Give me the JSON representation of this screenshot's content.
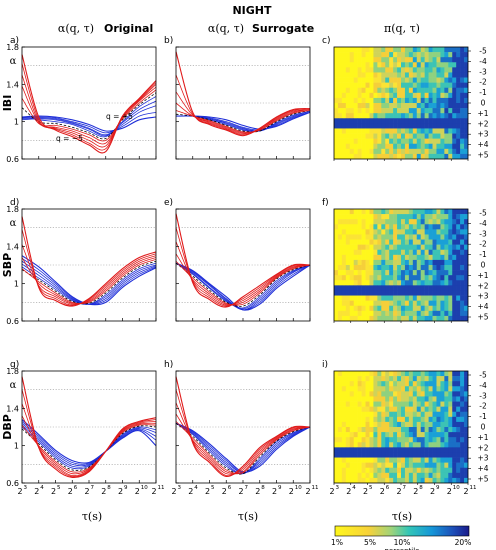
{
  "figure_title": "NIGHT",
  "column_titles": [
    {
      "sym": "α(q, τ)",
      "word": "Original"
    },
    {
      "sym": "α(q, τ)",
      "word": "Surrogate"
    },
    {
      "sym": "π(q, τ)",
      "word": ""
    }
  ],
  "row_labels": [
    "IBI",
    "SBP",
    "DBP"
  ],
  "panel_letters": [
    "a)",
    "b)",
    "c)",
    "d)",
    "e)",
    "f)",
    "g)",
    "h)",
    "i)"
  ],
  "alpha_label": "α",
  "q_axis_label": "q",
  "x_axis_label": "τ(s)",
  "x_tick_exponents": [
    "3",
    "4",
    "5",
    "6",
    "7",
    "8",
    "9",
    "10",
    "11"
  ],
  "y_ticks": [
    "1.8",
    "1.4",
    "1",
    "0.6"
  ],
  "q_ticks": [
    "-5",
    "-4",
    "-3",
    "-2",
    "-1",
    "0",
    "+1",
    "+2",
    "+3",
    "+4",
    "+5"
  ],
  "annotations": {
    "q_plus": "q = +5",
    "q_minus": "q = −5"
  },
  "colorbar": {
    "ticks": [
      "1%",
      "5%",
      "10%",
      "20%"
    ],
    "label": "percentile"
  },
  "colors": {
    "positive_q": "#1f2fd8",
    "negative_q": "#e01b1b",
    "q_zero": "#000000"
  },
  "chart_data": [
    {
      "type": "line",
      "panel": "a",
      "row": "IBI",
      "kind": "Original",
      "x_log2": [
        3,
        4,
        5,
        6,
        7,
        8,
        9,
        10,
        11
      ],
      "ylim": [
        0.6,
        1.8
      ],
      "grid": "dotted horizontal",
      "legend": "inline labels",
      "series": [
        {
          "name": "q = +5",
          "values": [
            1.05,
            1.06,
            1.05,
            1.02,
            0.97,
            0.9,
            0.93,
            1.02,
            1.05
          ]
        },
        {
          "values": [
            1.04,
            1.05,
            1.04,
            1.0,
            0.95,
            0.88,
            0.95,
            1.06,
            1.1
          ]
        },
        {
          "values": [
            1.03,
            1.04,
            1.03,
            0.99,
            0.93,
            0.86,
            0.97,
            1.1,
            1.17
          ]
        },
        {
          "values": [
            1.02,
            1.03,
            1.02,
            0.98,
            0.92,
            0.85,
            0.99,
            1.13,
            1.22
          ]
        },
        {
          "values": [
            1.05,
            1.02,
            1.0,
            0.97,
            0.9,
            0.84,
            1.0,
            1.16,
            1.27
          ]
        },
        {
          "values": [
            1.15,
            1.0,
            0.98,
            0.94,
            0.88,
            0.82,
            1.02,
            1.18,
            1.31
          ]
        },
        {
          "values": [
            1.25,
            0.98,
            0.96,
            0.92,
            0.86,
            0.8,
            1.03,
            1.2,
            1.34
          ]
        },
        {
          "values": [
            1.38,
            0.99,
            0.94,
            0.9,
            0.83,
            0.77,
            1.04,
            1.22,
            1.37
          ]
        },
        {
          "values": [
            1.5,
            1.0,
            0.93,
            0.88,
            0.8,
            0.74,
            1.05,
            1.23,
            1.4
          ]
        },
        {
          "values": [
            1.62,
            1.02,
            0.92,
            0.86,
            0.77,
            0.71,
            1.06,
            1.24,
            1.42
          ]
        },
        {
          "name": "q = −5",
          "values": [
            1.72,
            1.05,
            0.91,
            0.84,
            0.75,
            0.68,
            1.06,
            1.25,
            1.44
          ]
        }
      ]
    },
    {
      "type": "line",
      "panel": "b",
      "row": "IBI",
      "kind": "Surrogate",
      "x_log2": [
        3,
        4,
        5,
        6,
        7,
        8,
        9,
        10,
        11
      ],
      "ylim": [
        0.6,
        1.8
      ],
      "grid": "dotted horizontal",
      "series": [
        {
          "values": [
            1.06,
            1.06,
            1.05,
            1.02,
            0.96,
            0.92,
            0.95,
            1.03,
            1.1
          ]
        },
        {
          "values": [
            1.06,
            1.06,
            1.04,
            1.0,
            0.94,
            0.91,
            0.96,
            1.04,
            1.1
          ]
        },
        {
          "values": [
            1.06,
            1.06,
            1.03,
            0.99,
            0.93,
            0.9,
            0.97,
            1.05,
            1.1
          ]
        },
        {
          "values": [
            1.06,
            1.06,
            1.03,
            0.98,
            0.92,
            0.9,
            0.98,
            1.06,
            1.11
          ]
        },
        {
          "values": [
            1.06,
            1.06,
            1.02,
            0.97,
            0.91,
            0.9,
            0.99,
            1.07,
            1.11
          ]
        },
        {
          "values": [
            1.08,
            1.06,
            1.02,
            0.96,
            0.9,
            0.9,
            1.0,
            1.08,
            1.12
          ]
        },
        {
          "values": [
            1.12,
            1.06,
            1.01,
            0.95,
            0.89,
            0.91,
            1.01,
            1.09,
            1.12
          ]
        },
        {
          "values": [
            1.2,
            1.06,
            1.0,
            0.94,
            0.88,
            0.91,
            1.02,
            1.1,
            1.13
          ]
        },
        {
          "values": [
            1.32,
            1.07,
            0.99,
            0.93,
            0.87,
            0.92,
            1.03,
            1.11,
            1.13
          ]
        },
        {
          "values": [
            1.5,
            1.08,
            0.98,
            0.92,
            0.86,
            0.92,
            1.04,
            1.12,
            1.14
          ]
        },
        {
          "values": [
            1.75,
            1.1,
            0.97,
            0.91,
            0.85,
            0.93,
            1.05,
            1.13,
            1.14
          ]
        }
      ]
    },
    {
      "type": "heatmap",
      "panel": "c",
      "row": "IBI",
      "x_log2_range": [
        3,
        11
      ],
      "q": [
        -5,
        -4,
        -3,
        -2,
        -1,
        0,
        1,
        2,
        3,
        4,
        5
      ],
      "color_scale": "percentile 1%–20%"
    },
    {
      "type": "line",
      "panel": "d",
      "row": "SBP",
      "kind": "Original",
      "x_log2": [
        3,
        4,
        5,
        6,
        7,
        8,
        9,
        10,
        11
      ],
      "ylim": [
        0.6,
        1.8
      ],
      "grid": "dotted horizontal",
      "series": [
        {
          "values": [
            1.3,
            1.18,
            1.02,
            0.86,
            0.78,
            0.8,
            0.96,
            1.08,
            1.17
          ]
        },
        {
          "values": [
            1.27,
            1.15,
            1.0,
            0.85,
            0.78,
            0.82,
            0.98,
            1.1,
            1.18
          ]
        },
        {
          "values": [
            1.24,
            1.12,
            0.98,
            0.84,
            0.78,
            0.84,
            1.0,
            1.12,
            1.19
          ]
        },
        {
          "values": [
            1.21,
            1.09,
            0.96,
            0.83,
            0.78,
            0.86,
            1.02,
            1.14,
            1.2
          ]
        },
        {
          "values": [
            1.18,
            1.06,
            0.94,
            0.82,
            0.78,
            0.88,
            1.04,
            1.16,
            1.22
          ]
        },
        {
          "values": [
            1.15,
            1.04,
            0.92,
            0.81,
            0.79,
            0.9,
            1.06,
            1.18,
            1.24
          ]
        },
        {
          "values": [
            1.16,
            1.02,
            0.9,
            0.8,
            0.8,
            0.92,
            1.08,
            1.2,
            1.26
          ]
        },
        {
          "values": [
            1.28,
            1.0,
            0.88,
            0.79,
            0.81,
            0.94,
            1.1,
            1.22,
            1.28
          ]
        },
        {
          "values": [
            1.42,
            0.98,
            0.86,
            0.78,
            0.82,
            0.96,
            1.12,
            1.24,
            1.3
          ]
        },
        {
          "values": [
            1.58,
            0.97,
            0.84,
            0.77,
            0.83,
            0.98,
            1.14,
            1.26,
            1.32
          ]
        },
        {
          "values": [
            1.72,
            0.96,
            0.82,
            0.76,
            0.84,
            1.0,
            1.16,
            1.28,
            1.34
          ]
        }
      ]
    },
    {
      "type": "line",
      "panel": "e",
      "row": "SBP",
      "kind": "Surrogate",
      "x_log2": [
        3,
        4,
        5,
        6,
        7,
        8,
        9,
        10,
        11
      ],
      "ylim": [
        0.6,
        1.8
      ],
      "grid": "dotted horizontal",
      "series": [
        {
          "values": [
            1.22,
            1.14,
            1.0,
            0.86,
            0.72,
            0.78,
            0.95,
            1.08,
            1.2
          ]
        },
        {
          "values": [
            1.22,
            1.13,
            0.99,
            0.84,
            0.72,
            0.8,
            0.97,
            1.1,
            1.2
          ]
        },
        {
          "values": [
            1.22,
            1.12,
            0.98,
            0.83,
            0.72,
            0.82,
            0.99,
            1.12,
            1.2
          ]
        },
        {
          "values": [
            1.22,
            1.11,
            0.96,
            0.82,
            0.73,
            0.84,
            1.01,
            1.13,
            1.2
          ]
        },
        {
          "values": [
            1.22,
            1.1,
            0.95,
            0.81,
            0.74,
            0.86,
            1.03,
            1.14,
            1.2
          ]
        },
        {
          "values": [
            1.22,
            1.08,
            0.93,
            0.8,
            0.76,
            0.88,
            1.05,
            1.15,
            1.2
          ]
        },
        {
          "values": [
            1.24,
            1.06,
            0.91,
            0.79,
            0.78,
            0.9,
            1.06,
            1.16,
            1.2
          ]
        },
        {
          "values": [
            1.32,
            1.04,
            0.89,
            0.78,
            0.8,
            0.92,
            1.07,
            1.17,
            1.2
          ]
        },
        {
          "values": [
            1.45,
            1.03,
            0.87,
            0.77,
            0.82,
            0.94,
            1.08,
            1.18,
            1.2
          ]
        },
        {
          "values": [
            1.6,
            1.02,
            0.85,
            0.76,
            0.84,
            0.96,
            1.09,
            1.19,
            1.2
          ]
        },
        {
          "values": [
            1.75,
            1.01,
            0.83,
            0.75,
            0.86,
            0.98,
            1.1,
            1.2,
            1.2
          ]
        }
      ]
    },
    {
      "type": "heatmap",
      "panel": "f",
      "row": "SBP",
      "x_log2_range": [
        3,
        11
      ],
      "q": [
        -5,
        -4,
        -3,
        -2,
        -1,
        0,
        1,
        2,
        3,
        4,
        5
      ],
      "color_scale": "percentile 1%–20%"
    },
    {
      "type": "line",
      "panel": "g",
      "row": "DBP",
      "kind": "Original",
      "x_log2": [
        3,
        4,
        5,
        6,
        7,
        8,
        9,
        10,
        11
      ],
      "ylim": [
        0.6,
        1.8
      ],
      "grid": "dotted horizontal",
      "series": [
        {
          "values": [
            1.28,
            1.12,
            0.95,
            0.84,
            0.82,
            0.94,
            1.08,
            1.16,
            1.0
          ]
        },
        {
          "values": [
            1.26,
            1.1,
            0.93,
            0.82,
            0.81,
            0.94,
            1.09,
            1.17,
            1.06
          ]
        },
        {
          "values": [
            1.24,
            1.08,
            0.91,
            0.8,
            0.8,
            0.94,
            1.1,
            1.18,
            1.1
          ]
        },
        {
          "values": [
            1.22,
            1.06,
            0.89,
            0.78,
            0.79,
            0.94,
            1.11,
            1.19,
            1.14
          ]
        },
        {
          "values": [
            1.2,
            1.04,
            0.87,
            0.76,
            0.78,
            0.94,
            1.12,
            1.2,
            1.17
          ]
        },
        {
          "values": [
            1.18,
            1.02,
            0.85,
            0.74,
            0.77,
            0.94,
            1.13,
            1.21,
            1.2
          ]
        },
        {
          "values": [
            1.22,
            1.0,
            0.83,
            0.72,
            0.76,
            0.94,
            1.14,
            1.22,
            1.22
          ]
        },
        {
          "values": [
            1.32,
            0.99,
            0.81,
            0.7,
            0.75,
            0.94,
            1.15,
            1.23,
            1.24
          ]
        },
        {
          "values": [
            1.45,
            0.98,
            0.79,
            0.68,
            0.74,
            0.94,
            1.16,
            1.24,
            1.26
          ]
        },
        {
          "values": [
            1.6,
            0.98,
            0.77,
            0.67,
            0.73,
            0.94,
            1.17,
            1.25,
            1.28
          ]
        },
        {
          "values": [
            1.74,
            0.98,
            0.75,
            0.66,
            0.72,
            0.94,
            1.18,
            1.26,
            1.3
          ]
        }
      ]
    },
    {
      "type": "line",
      "panel": "h",
      "row": "DBP",
      "kind": "Surrogate",
      "x_log2": [
        3,
        4,
        5,
        6,
        7,
        8,
        9,
        10,
        11
      ],
      "ylim": [
        0.6,
        1.8
      ],
      "grid": "dotted horizontal",
      "series": [
        {
          "values": [
            1.24,
            1.16,
            1.02,
            0.86,
            0.72,
            0.78,
            0.96,
            1.1,
            1.2
          ]
        },
        {
          "values": [
            1.24,
            1.15,
            1.0,
            0.84,
            0.71,
            0.8,
            0.98,
            1.11,
            1.2
          ]
        },
        {
          "values": [
            1.24,
            1.14,
            0.98,
            0.82,
            0.71,
            0.82,
            1.0,
            1.12,
            1.2
          ]
        },
        {
          "values": [
            1.24,
            1.13,
            0.96,
            0.8,
            0.7,
            0.84,
            1.02,
            1.13,
            1.2
          ]
        },
        {
          "values": [
            1.24,
            1.12,
            0.94,
            0.78,
            0.7,
            0.86,
            1.04,
            1.14,
            1.2
          ]
        },
        {
          "values": [
            1.24,
            1.1,
            0.92,
            0.76,
            0.7,
            0.88,
            1.05,
            1.15,
            1.2
          ]
        },
        {
          "values": [
            1.26,
            1.08,
            0.9,
            0.74,
            0.71,
            0.9,
            1.06,
            1.16,
            1.2
          ]
        },
        {
          "values": [
            1.34,
            1.06,
            0.88,
            0.72,
            0.72,
            0.92,
            1.07,
            1.17,
            1.2
          ]
        },
        {
          "values": [
            1.46,
            1.05,
            0.86,
            0.7,
            0.74,
            0.94,
            1.08,
            1.18,
            1.2
          ]
        },
        {
          "values": [
            1.6,
            1.04,
            0.84,
            0.68,
            0.76,
            0.96,
            1.09,
            1.19,
            1.2
          ]
        },
        {
          "values": [
            1.74,
            1.03,
            0.82,
            0.67,
            0.78,
            0.98,
            1.1,
            1.2,
            1.2
          ]
        }
      ]
    },
    {
      "type": "heatmap",
      "panel": "i",
      "row": "DBP",
      "x_log2_range": [
        3,
        11
      ],
      "q": [
        -5,
        -4,
        -3,
        -2,
        -1,
        0,
        1,
        2,
        3,
        4,
        5
      ],
      "color_scale": "percentile 1%–20%"
    }
  ]
}
